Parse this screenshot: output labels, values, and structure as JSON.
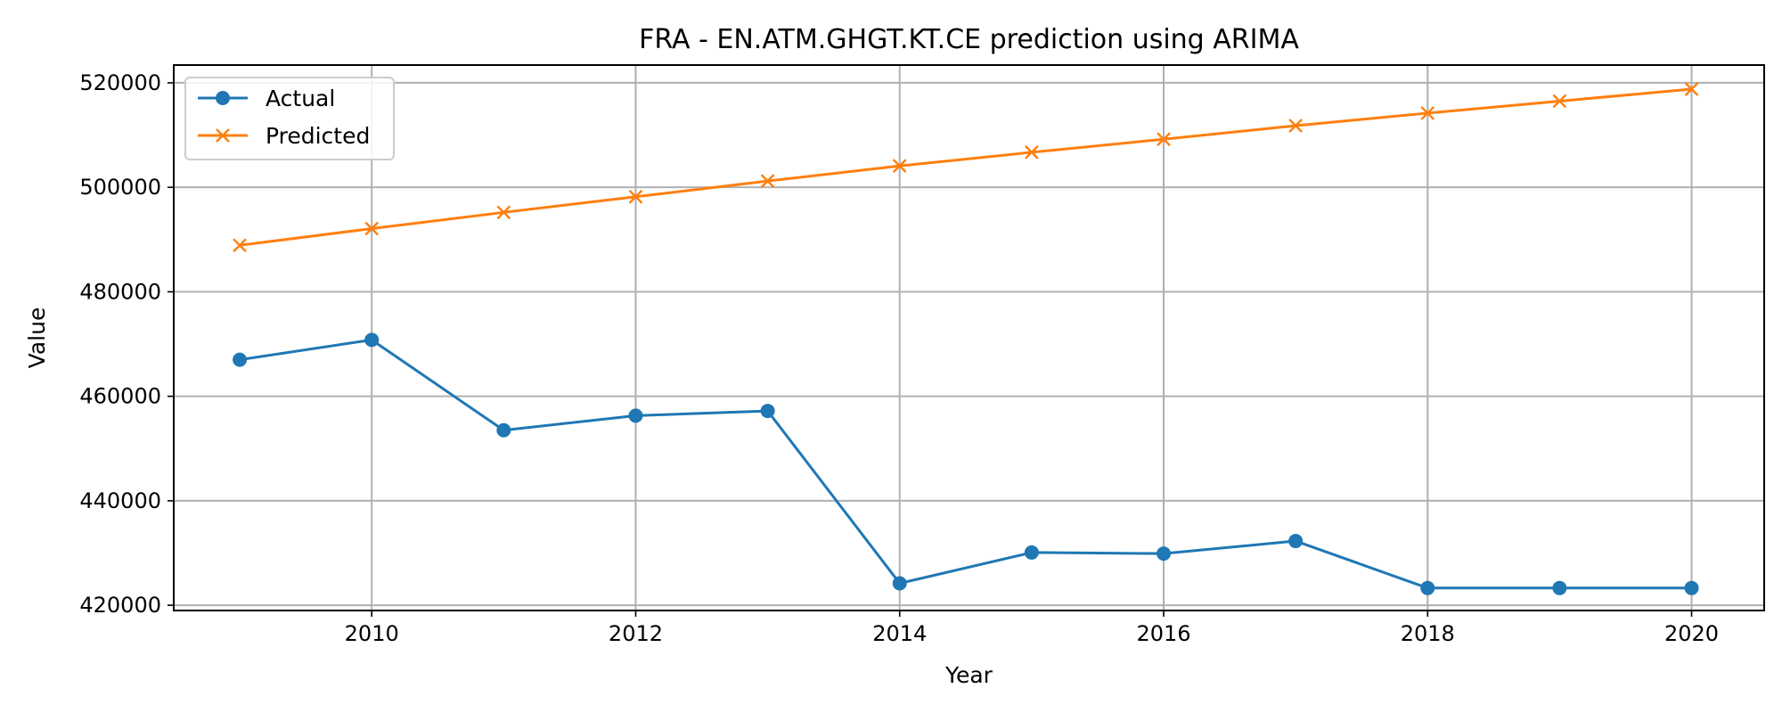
{
  "chart_data": {
    "type": "line",
    "title": "FRA - EN.ATM.GHGT.KT.CE prediction using ARIMA",
    "xlabel": "Year",
    "ylabel": "Value",
    "xlim": [
      2008.5,
      2020.55
    ],
    "ylim": [
      419000,
      523400
    ],
    "xticks": [
      2010,
      2012,
      2014,
      2016,
      2018,
      2020
    ],
    "yticks": [
      420000,
      440000,
      460000,
      480000,
      500000,
      520000
    ],
    "grid": true,
    "legend_position": "top-left",
    "x": [
      2009,
      2010,
      2011,
      2012,
      2013,
      2014,
      2015,
      2016,
      2017,
      2018,
      2019,
      2020
    ],
    "series": [
      {
        "name": "Actual",
        "color": "#1f77b4",
        "marker": "circle",
        "values": [
          467000,
          470800,
          453500,
          456300,
          457200,
          424200,
          430100,
          429900,
          432300,
          423300,
          423300,
          423300
        ]
      },
      {
        "name": "Predicted",
        "color": "#ff7f0e",
        "marker": "x",
        "values": [
          488900,
          492100,
          495200,
          498200,
          501200,
          504100,
          506700,
          509200,
          511800,
          514200,
          516500,
          518800
        ]
      }
    ]
  }
}
